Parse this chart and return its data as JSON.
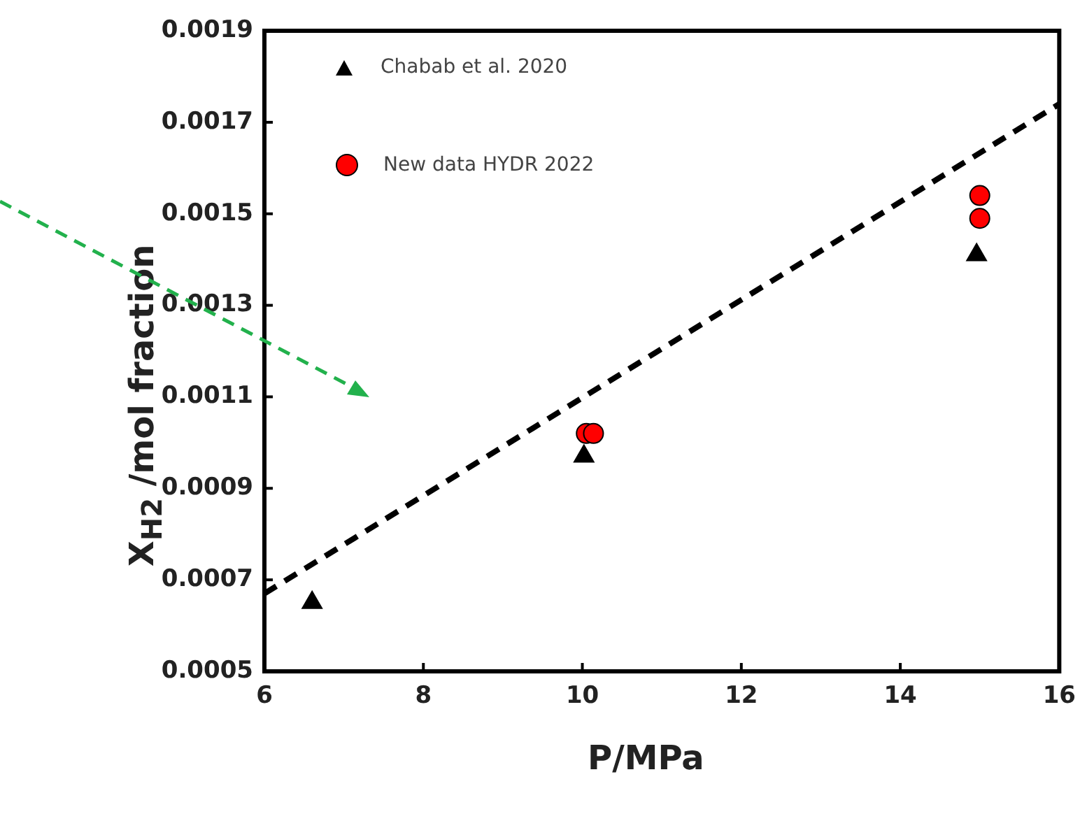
{
  "chart_data": {
    "type": "scatter",
    "xlabel": "P/MPa",
    "ylabel": "X$_{H2}$ /mol fraction",
    "xlim": [
      6,
      16
    ],
    "xticks": [
      6,
      8,
      10,
      12,
      14,
      16
    ],
    "ylim": [
      0.0005,
      0.0019
    ],
    "yticks": [
      0.0005,
      0.0007,
      0.0009,
      0.0011,
      0.0013,
      0.0015,
      0.0017,
      0.0019
    ],
    "grid": false,
    "legend": "top left",
    "series": [
      {
        "name": "Chabab et al. 2020",
        "color": "#000000",
        "marker": "triangle",
        "x": [
          6.6,
          10.02,
          14.96
        ],
        "values": [
          0.00065,
          0.00097,
          0.00141
        ]
      },
      {
        "name": "New data HYDR 2022",
        "color": "#ff0000",
        "marker": "circle",
        "x": [
          10.05,
          10.14,
          15,
          15
        ],
        "values": [
          0.00102,
          0.00102,
          0.00154,
          0.00149
        ]
      },
      {
        "type": "line",
        "color": "#000000",
        "line_style": "dashed",
        "marker": "none",
        "x": [
          6,
          16
        ],
        "values": [
          0.00067,
          0.00174
        ]
      }
    ]
  }
}
